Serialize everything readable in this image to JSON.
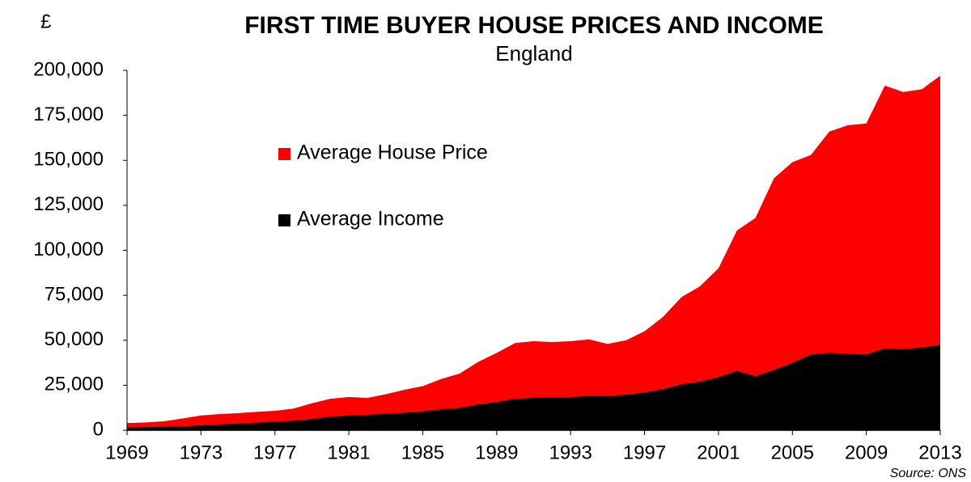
{
  "chart_data": {
    "type": "area",
    "title": "FIRST TIME BUYER HOUSE PRICES AND INCOME",
    "subtitle": "England",
    "y_label": "£",
    "source": "Source: ONS",
    "x": [
      1969,
      1970,
      1971,
      1972,
      1973,
      1974,
      1975,
      1976,
      1977,
      1978,
      1979,
      1980,
      1981,
      1982,
      1983,
      1984,
      1985,
      1986,
      1987,
      1988,
      1989,
      1990,
      1991,
      1992,
      1993,
      1994,
      1995,
      1996,
      1997,
      1998,
      1999,
      2000,
      2001,
      2002,
      2003,
      2004,
      2005,
      2006,
      2007,
      2008,
      2009,
      2010,
      2011,
      2012,
      2013
    ],
    "series": [
      {
        "name": "Average House Price",
        "color": "#ff0000",
        "values": [
          4000,
          4300,
          5000,
          6500,
          8200,
          9000,
          9500,
          10200,
          10800,
          12000,
          15000,
          17500,
          18500,
          18000,
          20000,
          22500,
          24500,
          28500,
          31500,
          38000,
          43000,
          48500,
          49500,
          49000,
          49500,
          50500,
          48000,
          50000,
          55000,
          63000,
          74000,
          80000,
          90000,
          111000,
          118000,
          140000,
          149000,
          153000,
          166000,
          169500,
          170500,
          191500,
          188000,
          189500,
          197000
        ]
      },
      {
        "name": "Average Income",
        "color": "#000000",
        "values": [
          1500,
          1700,
          1900,
          2200,
          2700,
          3200,
          3700,
          4200,
          4700,
          5300,
          6300,
          7600,
          8200,
          8600,
          9100,
          9700,
          10500,
          11600,
          12500,
          14300,
          15700,
          17500,
          18000,
          18300,
          18500,
          19000,
          19000,
          19800,
          21000,
          22800,
          25500,
          27000,
          29500,
          33000,
          30000,
          33500,
          37500,
          42000,
          43000,
          42500,
          42000,
          45500,
          45000,
          46000,
          47500
        ]
      }
    ],
    "xlim": [
      1969,
      2013
    ],
    "xticks": [
      1969,
      1973,
      1977,
      1981,
      1985,
      1989,
      1993,
      1997,
      2001,
      2005,
      2009,
      2013
    ],
    "ylim": [
      0,
      200000
    ],
    "yticks": [
      0,
      {
        "value": 25000,
        "label": "25,000"
      },
      {
        "value": 50000,
        "label": "50,000"
      },
      {
        "value": 75000,
        "label": "75,000"
      },
      {
        "value": 100000,
        "label": "100,000"
      },
      {
        "value": 125000,
        "label": "125,000"
      },
      {
        "value": 150000,
        "label": "150,000"
      },
      {
        "value": 175000,
        "label": "175,000"
      },
      {
        "value": 200000,
        "label": "200,000"
      }
    ],
    "grid": false,
    "legend": "inside"
  }
}
